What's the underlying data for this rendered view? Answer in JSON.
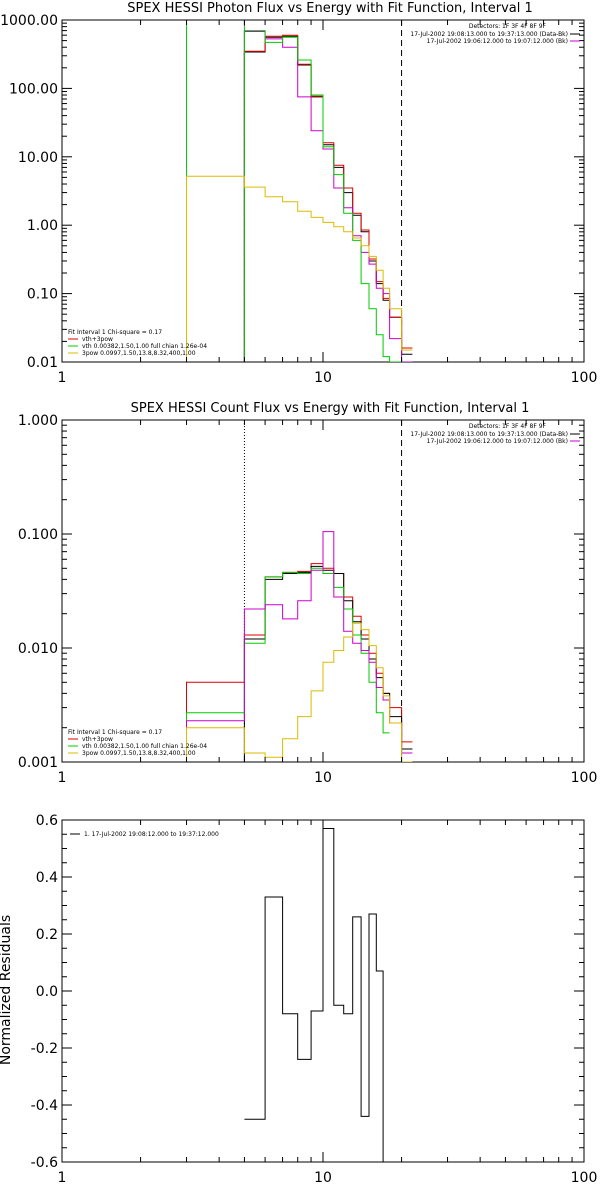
{
  "chart_data": [
    {
      "type": "line",
      "title": "SPEX HESSI Photon Flux vs Energy with Fit Function, Interval 1",
      "ylabel": "",
      "x_scale": "log",
      "y_scale": "log",
      "xlim": [
        1,
        100
      ],
      "ylim": [
        0.01,
        1000
      ],
      "x_ticks": [
        1,
        10,
        100
      ],
      "x_tick_labels": [
        "1",
        "10",
        "100"
      ],
      "y_ticks": [
        0.01,
        0.1,
        1,
        10,
        100,
        1000
      ],
      "y_tick_labels": [
        "0.01",
        "0.10",
        "1.00",
        "10.00",
        "100.00",
        "1000.00"
      ],
      "detectors": "Detectors: 1F 3F 4F 8F 9F",
      "legend_top": [
        {
          "text": "17-Jul-2002 19:08:13.000 to 19:37:13.000 (Data-Bk)",
          "color": "#000000"
        },
        {
          "text": "17-Jul-2002 19:06:12.000 to 19:07:12.000 (Bk)",
          "color": "#cc00cc"
        }
      ],
      "legend_bottom": [
        {
          "text": "Fit Interval 1   Chi-square = 0.17",
          "color": "#000000"
        },
        {
          "text": "vth+3pow",
          "color": "#dd0000"
        },
        {
          "text": "vth 0.00382,1.50,1.00  full chian 1.26e-04",
          "color": "#00cc00"
        },
        {
          "text": "3pow 0.0997,1.50,13.8,8.32,400,1.00",
          "color": "#ddbb00"
        }
      ],
      "vlines": [
        {
          "x": 3.0,
          "style": "solid",
          "color": "#00cc00"
        },
        {
          "x": 5.0,
          "style": "solid",
          "color": "#00cc00"
        },
        {
          "x": 5.0,
          "style": "dashed",
          "color": "#cc00cc"
        },
        {
          "x": 20.0,
          "style": "dashed",
          "color": "#000000"
        }
      ],
      "edges": [
        3,
        5,
        6,
        7,
        8,
        9,
        10,
        11,
        12,
        13,
        14,
        15,
        16,
        17,
        18,
        20,
        22
      ],
      "series": [
        {
          "color": "#000000",
          "values": [
            null,
            340,
            560,
            580,
            220,
            75,
            15,
            7,
            3,
            1.4,
            0.8,
            0.3,
            0.14,
            0.08,
            0.045,
            0.013
          ]
        },
        {
          "color": "#dd0000",
          "values": [
            null,
            350,
            580,
            600,
            225,
            77,
            16,
            7.5,
            3.5,
            1.5,
            0.85,
            0.32,
            0.15,
            0.085,
            0.045,
            0.016
          ]
        },
        {
          "color": "#cc00cc",
          "values": [
            null,
            680,
            530,
            400,
            75,
            24,
            13,
            3.5,
            1.8,
            0.7,
            0.4,
            0.27,
            0.12,
            0.1,
            0.022,
            0.01
          ]
        },
        {
          "color": "#00cc00",
          "values": [
            null,
            700,
            470,
            560,
            260,
            80,
            14,
            5.5,
            1.5,
            0.6,
            0.14,
            0.06,
            0.025,
            0.012,
            0.002,
            null
          ]
        },
        {
          "color": "#ddbb00",
          "values": [
            5.2,
            3.6,
            2.6,
            2.2,
            1.6,
            1.3,
            1.1,
            0.95,
            0.8,
            0.65,
            0.5,
            0.35,
            0.22,
            0.12,
            0.06,
            0.015
          ]
        }
      ]
    },
    {
      "type": "line",
      "title": "SPEX HESSI Count Flux vs Energy with Fit Function, Interval 1",
      "ylabel": "",
      "x_scale": "log",
      "y_scale": "log",
      "xlim": [
        1,
        100
      ],
      "ylim": [
        0.001,
        1
      ],
      "x_ticks": [
        1,
        10,
        100
      ],
      "x_tick_labels": [
        "1",
        "10",
        "100"
      ],
      "y_ticks": [
        0.001,
        0.01,
        0.1,
        1
      ],
      "y_tick_labels": [
        "0.001",
        "0.010",
        "0.100",
        "1.000"
      ],
      "detectors": "Detectors: 1F 3F 4F 8F 9F",
      "legend_top": [
        {
          "text": "17-Jul-2002 19:08:13.000 to 19:37:13.000 (Data-Bk)",
          "color": "#000000"
        },
        {
          "text": "17-Jul-2002 19:06:12.000 to 19:07:12.000 (Bk)",
          "color": "#cc00cc"
        }
      ],
      "legend_bottom": [
        {
          "text": "Fit Interval 1   Chi-square = 0.17",
          "color": "#000000"
        },
        {
          "text": "vth+3pow",
          "color": "#dd0000"
        },
        {
          "text": "vth 0.00382,1.50,1.00  full chian 1.26e-04",
          "color": "#00cc00"
        },
        {
          "text": "3pow 0.0997,1.50,13.8,8.32,400,1.00",
          "color": "#ddbb00"
        }
      ],
      "vlines": [
        {
          "x": 5.0,
          "style": "dotted",
          "color": "#000000"
        },
        {
          "x": 20.0,
          "style": "dashed",
          "color": "#000000"
        }
      ],
      "edges": [
        3,
        5,
        6,
        7,
        8,
        9,
        10,
        11,
        12,
        13,
        14,
        15,
        16,
        17,
        18,
        20,
        22
      ],
      "series": [
        {
          "color": "#dd0000",
          "values": [
            0.005,
            0.013,
            0.042,
            0.046,
            0.047,
            0.055,
            0.05,
            0.045,
            0.028,
            0.019,
            0.013,
            0.009,
            0.006,
            0.004,
            0.003,
            0.0015
          ]
        },
        {
          "color": "#000000",
          "values": [
            null,
            0.012,
            0.04,
            0.045,
            0.046,
            0.052,
            0.048,
            0.045,
            0.026,
            0.017,
            0.012,
            0.008,
            0.0055,
            0.004,
            0.0025,
            0.0013
          ]
        },
        {
          "color": "#00cc00",
          "values": [
            0.0027,
            0.011,
            0.042,
            0.046,
            0.045,
            0.05,
            0.045,
            0.034,
            0.022,
            0.013,
            0.009,
            0.005,
            0.0027,
            0.0018,
            null,
            null
          ]
        },
        {
          "color": "#cc00cc",
          "values": [
            0.0023,
            0.022,
            0.024,
            0.018,
            0.026,
            0.048,
            0.105,
            0.028,
            0.014,
            0.011,
            0.0095,
            0.0075,
            0.0045,
            0.0035,
            0.0022,
            0.0012
          ]
        },
        {
          "color": "#ddbb00",
          "values": [
            0.002,
            0.0012,
            0.0011,
            0.0016,
            0.0025,
            0.0042,
            0.0075,
            0.0095,
            0.0125,
            0.0165,
            0.0145,
            0.0105,
            0.0067,
            0.0038,
            0.0022,
            0.001
          ]
        }
      ]
    },
    {
      "type": "line",
      "title": "",
      "ylabel": "Normalized Residuals",
      "x_scale": "log",
      "y_scale": "linear",
      "xlim": [
        1,
        100
      ],
      "ylim": [
        -0.6,
        0.6
      ],
      "x_ticks": [
        1,
        10,
        100
      ],
      "x_tick_labels": [
        "1",
        "10",
        "100"
      ],
      "y_ticks": [
        -0.6,
        -0.4,
        -0.2,
        0.0,
        0.2,
        0.4,
        0.6
      ],
      "y_tick_labels": [
        "-0.6",
        "-0.4",
        "-0.2",
        "0.0",
        "0.2",
        "0.4",
        "0.6"
      ],
      "legend_top_left": {
        "text": "1. 17-Jul-2002 19:08:12.000 to 19:37:12.000",
        "color": "#000000"
      },
      "edges": [
        5,
        6,
        7,
        8,
        9,
        10,
        11,
        12,
        13,
        14,
        15,
        16,
        17,
        18,
        20
      ],
      "series": [
        {
          "color": "#000000",
          "values": [
            -0.45,
            0.33,
            -0.08,
            -0.24,
            -0.07,
            0.57,
            -0.05,
            -0.08,
            0.26,
            -0.44,
            0.27,
            0.07,
            -0.6,
            -0.6
          ]
        }
      ]
    }
  ]
}
